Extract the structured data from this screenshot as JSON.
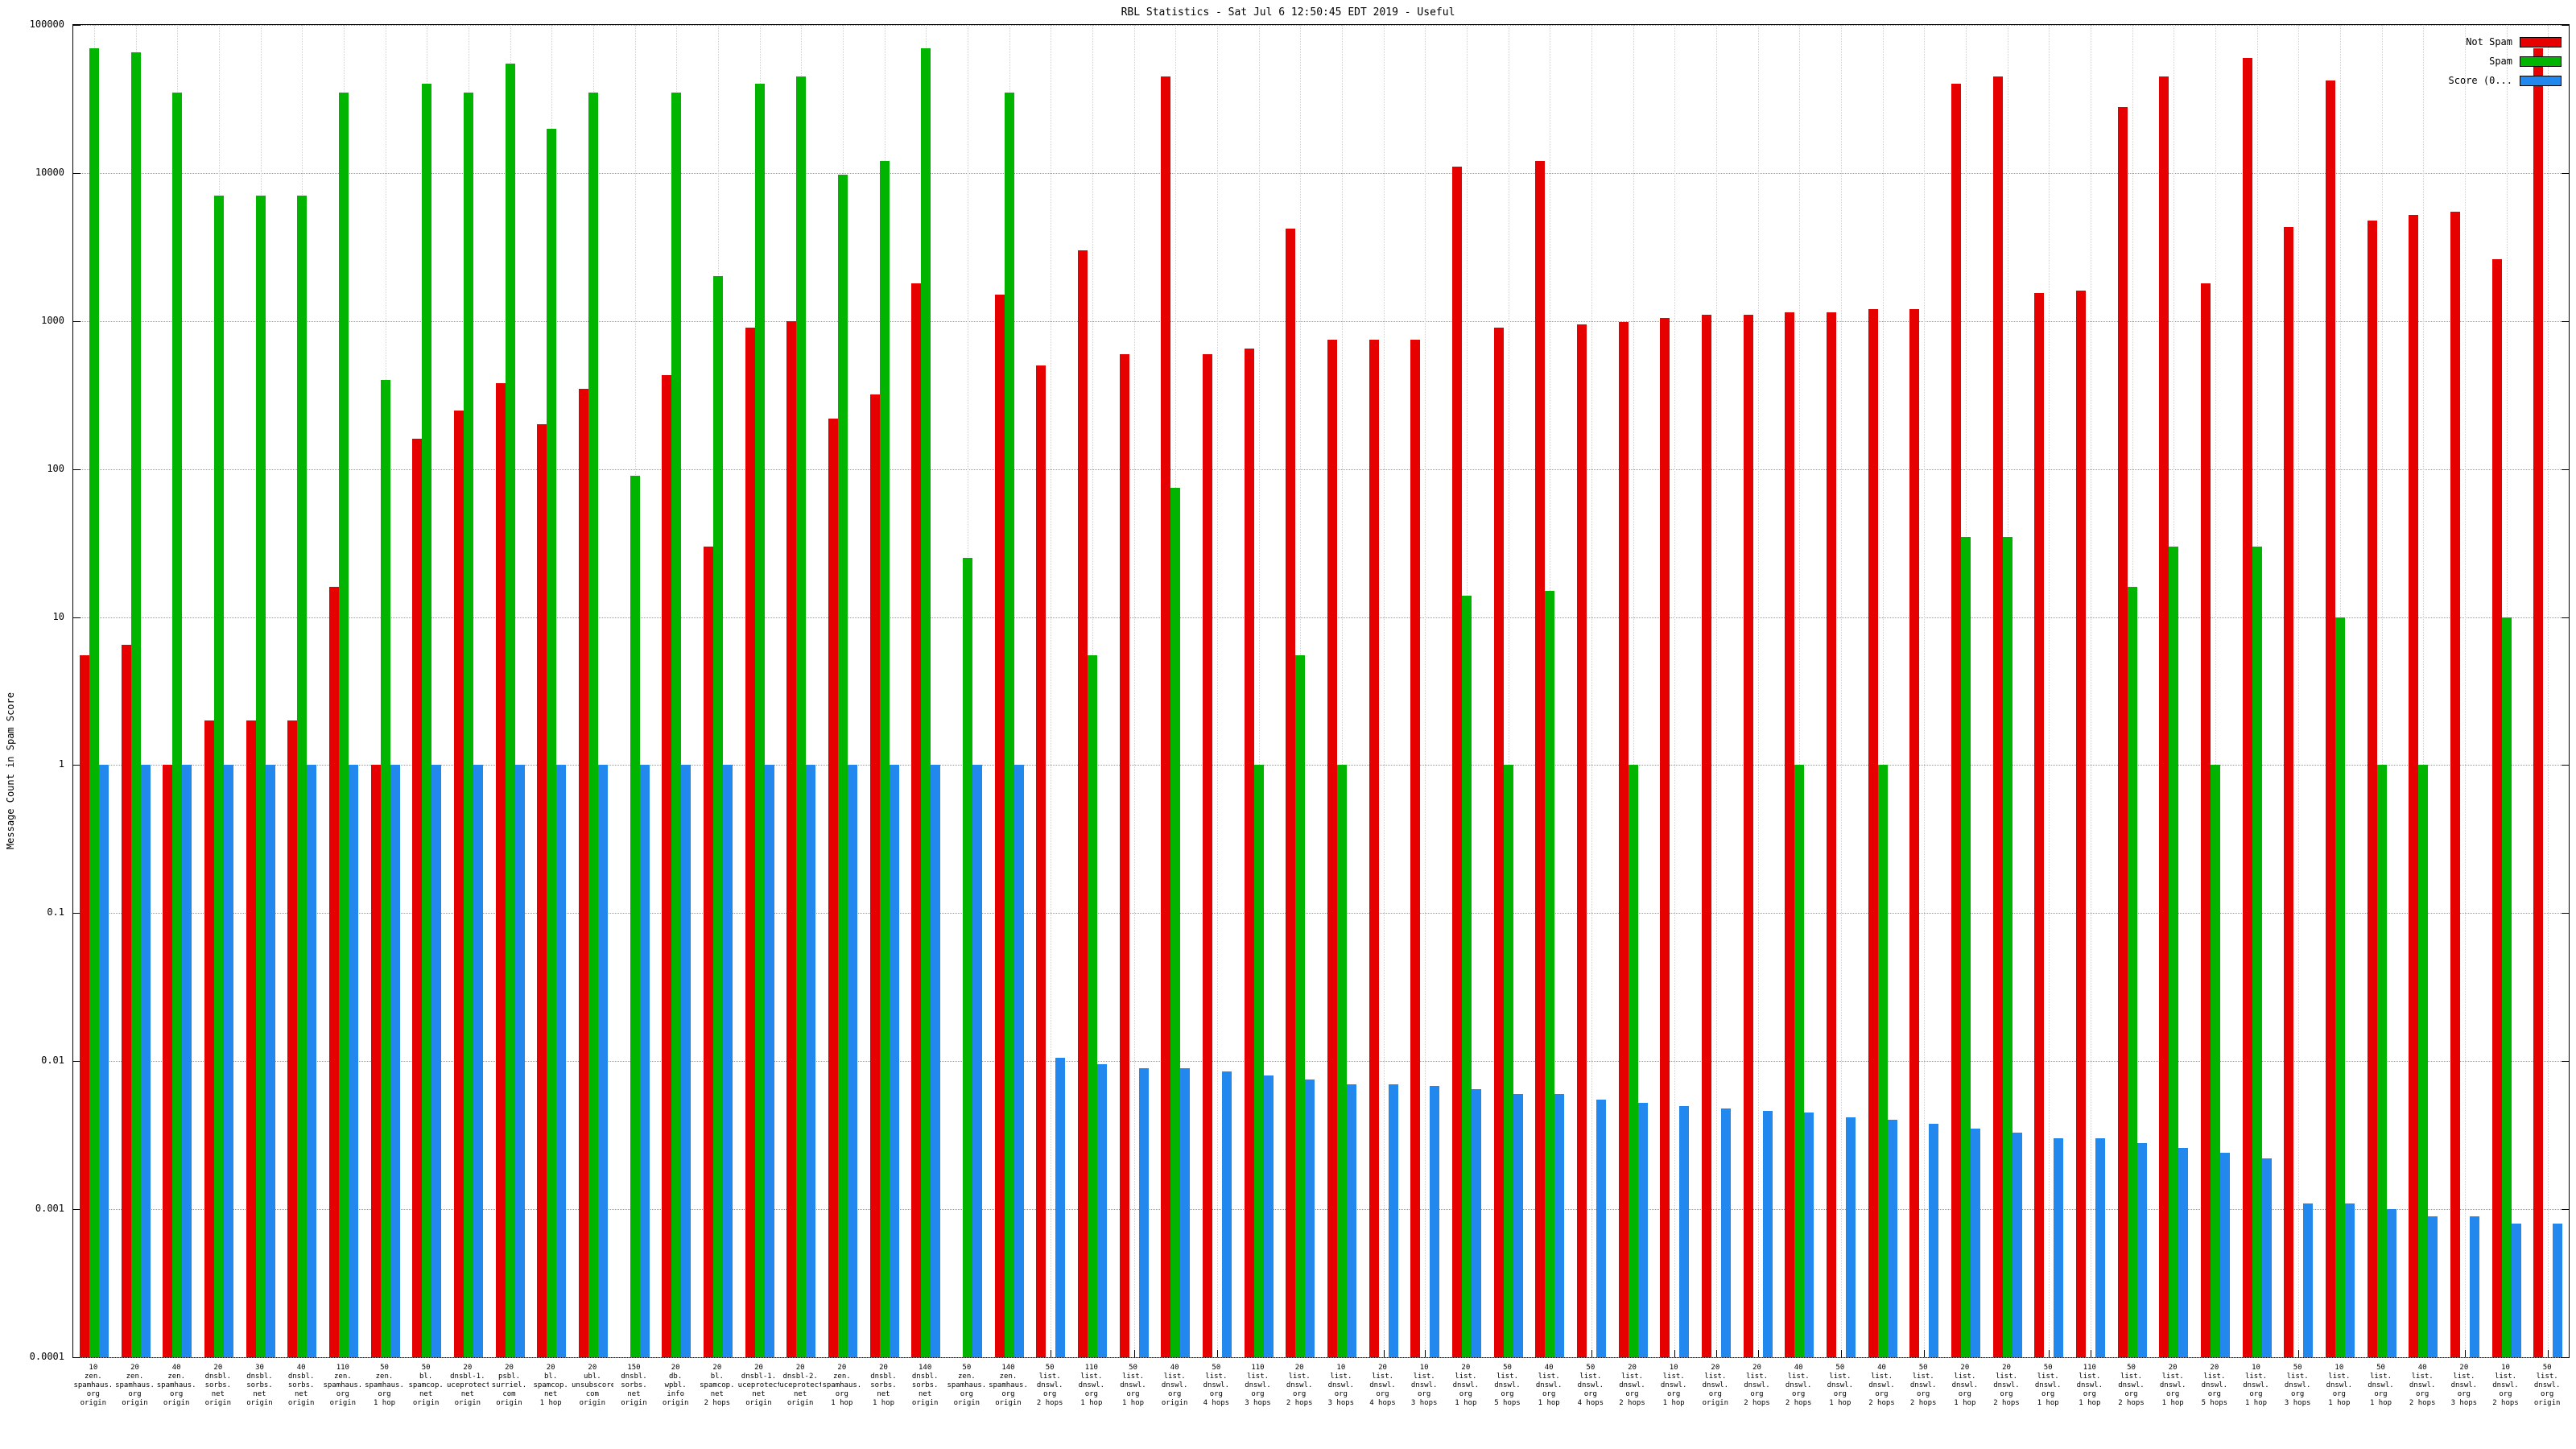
{
  "chart_data": {
    "type": "bar",
    "title": "RBL Statistics - Sat Jul  6 12:50:45 EDT 2019 - Useful",
    "ylabel": "Message Count in Spam Score",
    "xlabel": "",
    "y_scale": "log",
    "ylim": [
      0.0001,
      100000
    ],
    "y_ticks": [
      "100000",
      "10000",
      "1000",
      "100",
      "10",
      "1",
      "0.1",
      "0.01",
      "0.001",
      "0.0001"
    ],
    "grid": true,
    "legend_position": "top-right",
    "categories": [
      [
        "10",
        "zen.",
        "spamhaus.",
        "org",
        "origin"
      ],
      [
        "20",
        "zen.",
        "spamhaus.",
        "org",
        "origin"
      ],
      [
        "40",
        "zen.",
        "spamhaus.",
        "org",
        "origin"
      ],
      [
        "20",
        "dnsbl.",
        "sorbs.",
        "net",
        "origin"
      ],
      [
        "30",
        "dnsbl.",
        "sorbs.",
        "net",
        "origin"
      ],
      [
        "40",
        "dnsbl.",
        "sorbs.",
        "net",
        "origin"
      ],
      [
        "110",
        "zen.",
        "spamhaus.",
        "org",
        "origin"
      ],
      [
        "50",
        "zen.",
        "spamhaus.",
        "org",
        "1 hop"
      ],
      [
        "50",
        "bl.",
        "spamcop.",
        "net",
        "origin"
      ],
      [
        "20",
        "dnsbl-1.",
        "uceprotect.",
        "net",
        "origin"
      ],
      [
        "20",
        "psbl.",
        "surriel.",
        "com",
        "origin"
      ],
      [
        "20",
        "bl.",
        "spamcop.",
        "net",
        "1 hop"
      ],
      [
        "20",
        "ubl.",
        "unsubscore.",
        "com",
        "origin"
      ],
      [
        "150",
        "dnsbl.",
        "sorbs.",
        "net",
        "origin"
      ],
      [
        "20",
        "db.",
        "wpbl.",
        "info",
        "origin"
      ],
      [
        "20",
        "bl.",
        "spamcop.",
        "net",
        "2 hops"
      ],
      [
        "20",
        "dnsbl-1.",
        "uceprotect.",
        "net",
        "origin"
      ],
      [
        "20",
        "dnsbl-2.",
        "uceprotect.",
        "net",
        "origin"
      ],
      [
        "20",
        "zen.",
        "spamhaus.",
        "org",
        "1 hop"
      ],
      [
        "20",
        "dnsbl.",
        "sorbs.",
        "net",
        "1 hop"
      ],
      [
        "140",
        "dnsbl.",
        "sorbs.",
        "net",
        "origin"
      ],
      [
        "50",
        "zen.",
        "spamhaus.",
        "org",
        "origin"
      ],
      [
        "140",
        "zen.",
        "spamhaus.",
        "org",
        "origin"
      ],
      [
        "50",
        "list.",
        "dnswl.",
        "org",
        "2 hops"
      ],
      [
        "110",
        "list.",
        "dnswl.",
        "org",
        "1 hop"
      ],
      [
        "50",
        "list.",
        "dnswl.",
        "org",
        "1 hop"
      ],
      [
        "40",
        "list.",
        "dnswl.",
        "org",
        "origin"
      ],
      [
        "50",
        "list.",
        "dnswl.",
        "org",
        "4 hops"
      ],
      [
        "110",
        "list.",
        "dnswl.",
        "org",
        "3 hops"
      ],
      [
        "20",
        "list.",
        "dnswl.",
        "org",
        "2 hops"
      ],
      [
        "10",
        "list.",
        "dnswl.",
        "org",
        "3 hops"
      ],
      [
        "20",
        "list.",
        "dnswl.",
        "org",
        "4 hops"
      ],
      [
        "10",
        "list.",
        "dnswl.",
        "org",
        "3 hops"
      ],
      [
        "20",
        "list.",
        "dnswl.",
        "org",
        "1 hop"
      ],
      [
        "50",
        "list.",
        "dnswl.",
        "org",
        "5 hops"
      ],
      [
        "40",
        "list.",
        "dnswl.",
        "org",
        "1 hop"
      ],
      [
        "50",
        "list.",
        "dnswl.",
        "org",
        "4 hops"
      ],
      [
        "20",
        "list.",
        "dnswl.",
        "org",
        "2 hops"
      ],
      [
        "10",
        "list.",
        "dnswl.",
        "org",
        "1 hop"
      ],
      [
        "20",
        "list.",
        "dnswl.",
        "org",
        "origin"
      ],
      [
        "20",
        "list.",
        "dnswl.",
        "org",
        "2 hops"
      ],
      [
        "40",
        "list.",
        "dnswl.",
        "org",
        "2 hops"
      ],
      [
        "50",
        "list.",
        "dnswl.",
        "org",
        "1 hop"
      ],
      [
        "40",
        "list.",
        "dnswl.",
        "org",
        "2 hops"
      ],
      [
        "50",
        "list.",
        "dnswl.",
        "org",
        "2 hops"
      ],
      [
        "20",
        "list.",
        "dnswl.",
        "org",
        "1 hop"
      ],
      [
        "20",
        "list.",
        "dnswl.",
        "org",
        "2 hops"
      ],
      [
        "50",
        "list.",
        "dnswl.",
        "org",
        "1 hop"
      ],
      [
        "110",
        "list.",
        "dnswl.",
        "org",
        "1 hop"
      ],
      [
        "50",
        "list.",
        "dnswl.",
        "org",
        "2 hops"
      ],
      [
        "20",
        "list.",
        "dnswl.",
        "org",
        "1 hop"
      ],
      [
        "20",
        "list.",
        "dnswl.",
        "org",
        "5 hops"
      ],
      [
        "10",
        "list.",
        "dnswl.",
        "org",
        "1 hop"
      ],
      [
        "50",
        "list.",
        "dnswl.",
        "org",
        "3 hops"
      ],
      [
        "10",
        "list.",
        "dnswl.",
        "org",
        "1 hop"
      ],
      [
        "50",
        "list.",
        "dnswl.",
        "org",
        "1 hop"
      ],
      [
        "40",
        "list.",
        "dnswl.",
        "org",
        "2 hops"
      ],
      [
        "20",
        "list.",
        "dnswl.",
        "org",
        "3 hops"
      ],
      [
        "10",
        "list.",
        "dnswl.",
        "org",
        "2 hops"
      ],
      [
        "50",
        "list.",
        "dnswl.",
        "org",
        "origin"
      ]
    ],
    "series": [
      {
        "name": "Not Spam",
        "color": "#e60000",
        "values": [
          5.5,
          6.5,
          1,
          2,
          2,
          2,
          16,
          1,
          160,
          250,
          380,
          200,
          350,
          null,
          430,
          30,
          900,
          1000,
          220,
          320,
          1800,
          null,
          1500,
          500,
          3000,
          600,
          45000,
          600,
          650,
          4200,
          750,
          750,
          750,
          11000,
          900,
          12000,
          950,
          980,
          1050,
          1100,
          1100,
          1150,
          1150,
          1200,
          1200,
          40000,
          45000,
          1550,
          1600,
          28000,
          45000,
          1800,
          60000,
          4300,
          42000,
          4800,
          5200,
          5500,
          2600,
          70000
        ]
      },
      {
        "name": "Spam",
        "color": "#00b400",
        "values": [
          70000,
          65000,
          35000,
          7000,
          7000,
          7000,
          35000,
          400,
          40000,
          35000,
          55000,
          20000,
          35000,
          90,
          35000,
          2000,
          40000,
          45000,
          9800,
          12000,
          70000,
          25,
          35000,
          null,
          5.5,
          null,
          75,
          null,
          1,
          5.5,
          1,
          null,
          null,
          14,
          1,
          15,
          null,
          1,
          null,
          null,
          null,
          1,
          null,
          1,
          null,
          35,
          35,
          null,
          null,
          16,
          30,
          1,
          30,
          null,
          10,
          1,
          1,
          null,
          10,
          null
        ]
      },
      {
        "name": "Score (0...",
        "color": "#2288ee",
        "values": [
          1,
          1,
          1,
          1,
          1,
          1,
          1,
          1,
          1,
          1,
          1,
          1,
          1,
          1,
          1,
          1,
          1,
          1,
          1,
          1,
          1,
          1,
          1,
          0.0105,
          0.0095,
          0.009,
          0.009,
          0.0085,
          0.008,
          0.0075,
          0.007,
          0.007,
          0.0068,
          0.0065,
          0.006,
          0.006,
          0.0055,
          0.0052,
          0.005,
          0.0048,
          0.0046,
          0.0045,
          0.0042,
          0.004,
          0.0038,
          0.0035,
          0.0033,
          0.003,
          0.003,
          0.0028,
          0.0026,
          0.0024,
          0.0022,
          0.0011,
          0.0011,
          0.001,
          0.0009,
          0.0009,
          0.0008,
          0.0008
        ]
      }
    ]
  }
}
